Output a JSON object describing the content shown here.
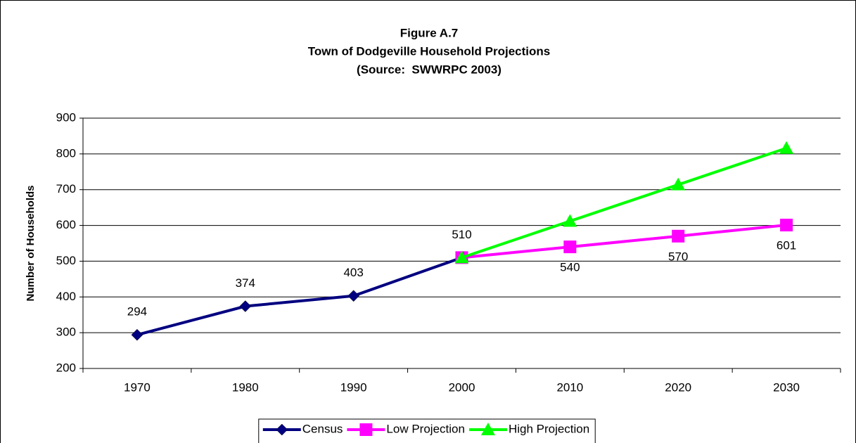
{
  "chart_data": {
    "type": "line",
    "title": [
      "Figure A.7",
      "Town of Dodgeville Household Projections",
      "(Source:  SWWRPC 2003)"
    ],
    "y_label": "Number of Households",
    "categories": [
      "1970",
      "1980",
      "1990",
      "2000",
      "2010",
      "2020",
      "2030"
    ],
    "series": [
      {
        "name": "Census",
        "color": "#000080",
        "marker": "diamond",
        "values": [
          294,
          374,
          403,
          510,
          null,
          null,
          null
        ]
      },
      {
        "name": "Low Projection",
        "color": "#FF00FF",
        "marker": "square",
        "values": [
          null,
          null,
          null,
          510,
          540,
          570,
          601
        ]
      },
      {
        "name": "High Projection",
        "color": "#00FF00",
        "marker": "triangle",
        "values": [
          null,
          null,
          null,
          510,
          612,
          714,
          816
        ]
      }
    ],
    "ylim": [
      200,
      900
    ],
    "yticks": [
      200,
      300,
      400,
      500,
      600,
      700,
      800,
      900
    ],
    "grid": true,
    "legend": "bottom"
  }
}
